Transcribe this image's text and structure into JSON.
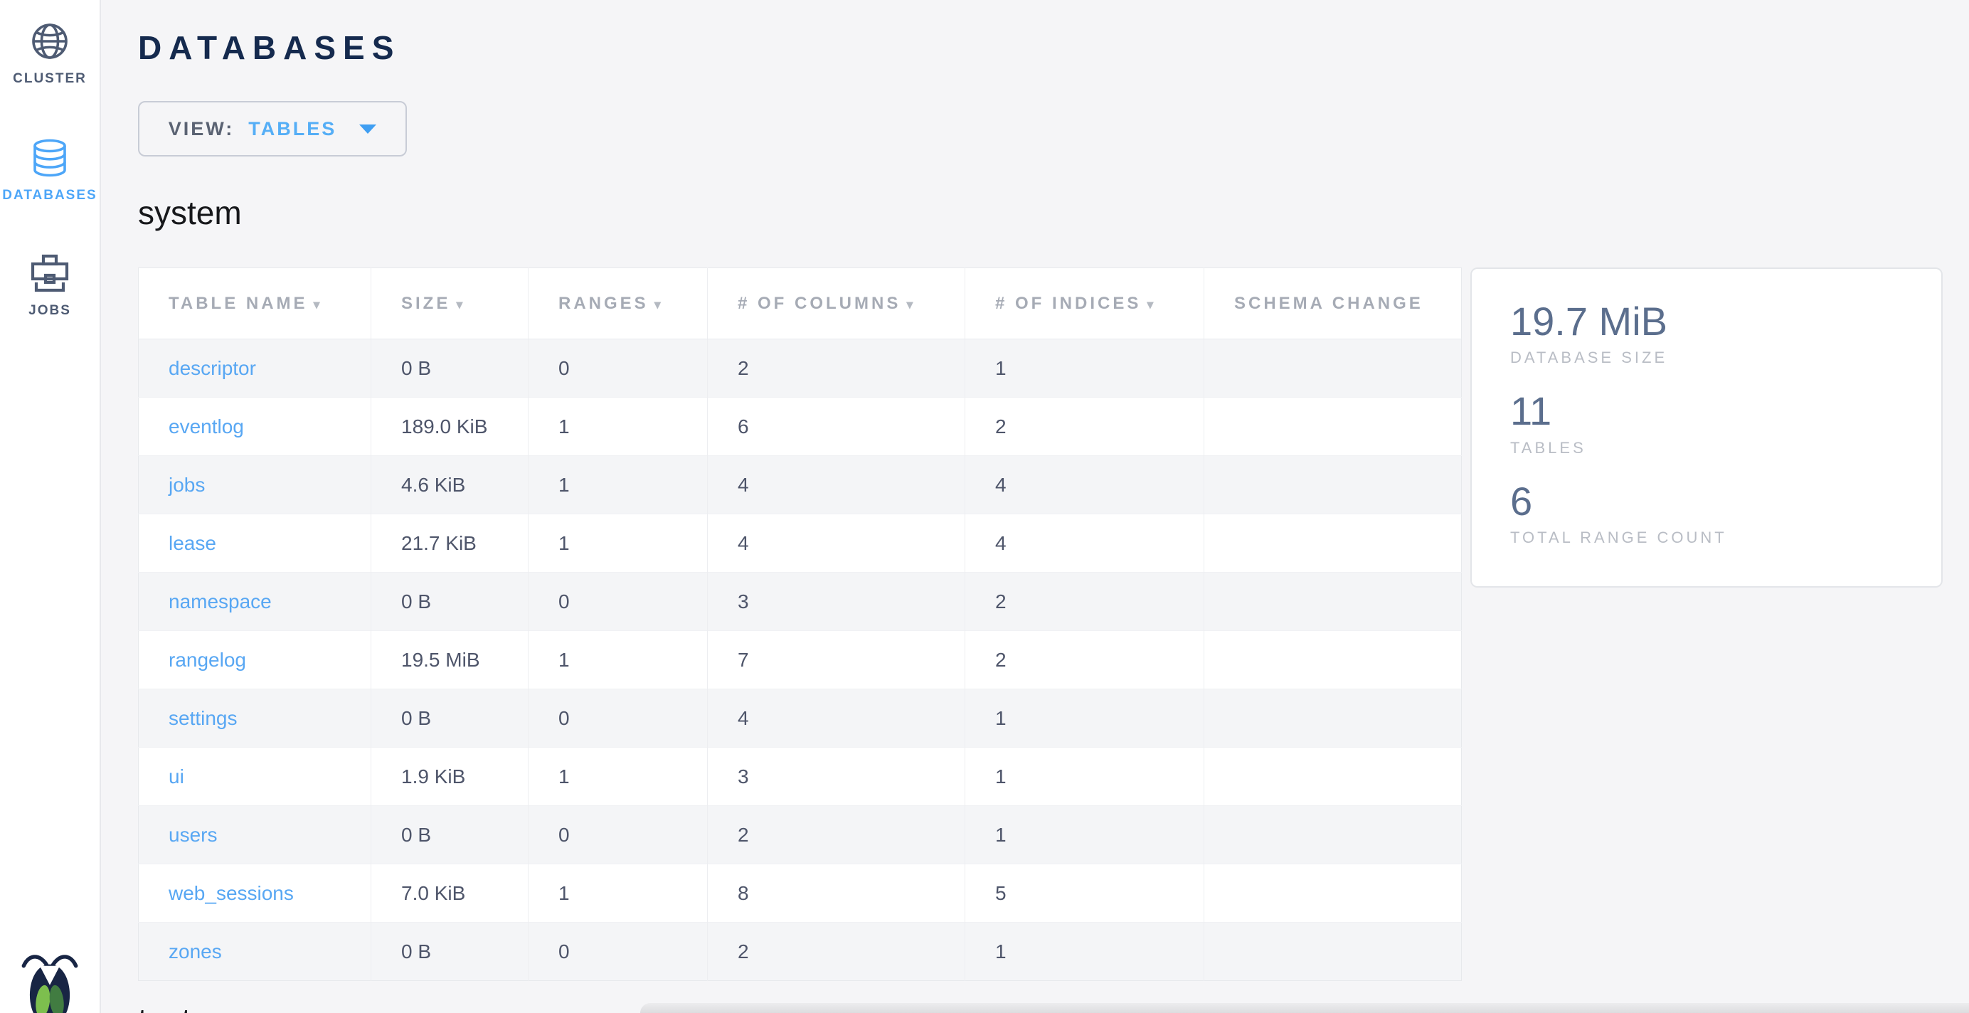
{
  "sidebar": {
    "items": [
      {
        "id": "cluster",
        "label": "CLUSTER",
        "icon": "globe",
        "active": false
      },
      {
        "id": "databases",
        "label": "DATABASES",
        "icon": "database",
        "active": true
      },
      {
        "id": "jobs",
        "label": "JOBS",
        "icon": "briefcase",
        "active": false
      }
    ]
  },
  "header": {
    "title": "DATABASES",
    "view_label": "VIEW:",
    "view_value": "TABLES"
  },
  "sections": {
    "top": "system",
    "bottom": "test"
  },
  "table": {
    "columns": [
      {
        "label": "TABLE NAME",
        "sortable": true
      },
      {
        "label": "SIZE",
        "sortable": true
      },
      {
        "label": "RANGES",
        "sortable": true
      },
      {
        "label": "# OF COLUMNS",
        "sortable": true
      },
      {
        "label": "# OF INDICES",
        "sortable": true
      },
      {
        "label": "SCHEMA CHANGE",
        "sortable": false
      }
    ],
    "rows": [
      {
        "name": "descriptor",
        "size": "0 B",
        "ranges": "0",
        "columns": "2",
        "indices": "1",
        "schema_change": ""
      },
      {
        "name": "eventlog",
        "size": "189.0 KiB",
        "ranges": "1",
        "columns": "6",
        "indices": "2",
        "schema_change": ""
      },
      {
        "name": "jobs",
        "size": "4.6 KiB",
        "ranges": "1",
        "columns": "4",
        "indices": "4",
        "schema_change": ""
      },
      {
        "name": "lease",
        "size": "21.7 KiB",
        "ranges": "1",
        "columns": "4",
        "indices": "4",
        "schema_change": ""
      },
      {
        "name": "namespace",
        "size": "0 B",
        "ranges": "0",
        "columns": "3",
        "indices": "2",
        "schema_change": ""
      },
      {
        "name": "rangelog",
        "size": "19.5 MiB",
        "ranges": "1",
        "columns": "7",
        "indices": "2",
        "schema_change": ""
      },
      {
        "name": "settings",
        "size": "0 B",
        "ranges": "0",
        "columns": "4",
        "indices": "1",
        "schema_change": ""
      },
      {
        "name": "ui",
        "size": "1.9 KiB",
        "ranges": "1",
        "columns": "3",
        "indices": "1",
        "schema_change": ""
      },
      {
        "name": "users",
        "size": "0 B",
        "ranges": "0",
        "columns": "2",
        "indices": "1",
        "schema_change": ""
      },
      {
        "name": "web_sessions",
        "size": "7.0 KiB",
        "ranges": "1",
        "columns": "8",
        "indices": "5",
        "schema_change": ""
      },
      {
        "name": "zones",
        "size": "0 B",
        "ranges": "0",
        "columns": "2",
        "indices": "1",
        "schema_change": ""
      }
    ]
  },
  "summary": {
    "stats": [
      {
        "value": "19.7 MiB",
        "label": "DATABASE SIZE"
      },
      {
        "value": "11",
        "label": "TABLES"
      },
      {
        "value": "6",
        "label": "TOTAL RANGE COUNT"
      }
    ]
  },
  "colors": {
    "accent_blue": "#4da6f8",
    "title_navy": "#152a4e",
    "slate_icon": "#4e5b73",
    "link_blue": "#58a7f3",
    "stat_value": "#5b6e8d",
    "muted_label": "#b9bdc5",
    "row_stripe": "#f4f5f7",
    "page_bg": "#f5f5f7",
    "logo_dark": "#182544",
    "logo_green_light": "#7dbf4e",
    "logo_green_dark": "#417c41"
  }
}
